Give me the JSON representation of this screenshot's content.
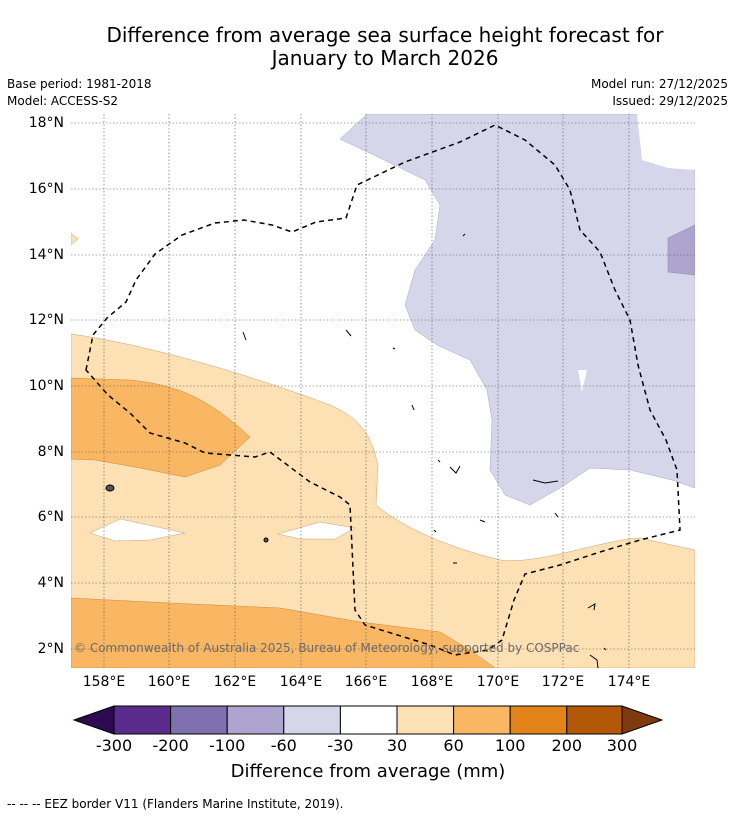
{
  "title": {
    "line1": "Difference from average sea surface height forecast for",
    "line2": "January to March 2026"
  },
  "meta": {
    "base_period": "Base period: 1981-2018",
    "model": "Model: ACCESS-S2",
    "model_run": "Model run: 27/12/2025",
    "issued": "Issued: 29/12/2025"
  },
  "axes": {
    "latitudes": [
      "18°N",
      "16°N",
      "14°N",
      "12°N",
      "10°N",
      "8°N",
      "6°N",
      "4°N",
      "2°N"
    ],
    "longitudes": [
      "158°E",
      "160°E",
      "162°E",
      "164°E",
      "166°E",
      "168°E",
      "170°E",
      "172°E",
      "174°E"
    ]
  },
  "copyright": "© Commonwealth of Australia 2025, Bureau of Meteorology, supported by COSPPac",
  "colorbar": {
    "ticks": [
      "-300",
      "-200",
      "-100",
      "-60",
      "-30",
      "30",
      "60",
      "100",
      "200",
      "300"
    ],
    "colors": [
      "#2d0a52",
      "#5a2a8c",
      "#8170b0",
      "#ada4cf",
      "#d6d6ea",
      "#ffffff",
      "#fde0b4",
      "#f9b663",
      "#e1841a",
      "#b35808",
      "#7e3b0c"
    ],
    "label": "Difference from average (mm)"
  },
  "legend": {
    "eez": "--  --  -- EEZ border V11 (Flanders Marine Institute, 2019)."
  },
  "map_fill": {
    "light_purple": "#d6d6ea",
    "mid_purple": "#ada4cf",
    "light_orange": "#fde0b4",
    "mid_orange": "#f9b663"
  }
}
